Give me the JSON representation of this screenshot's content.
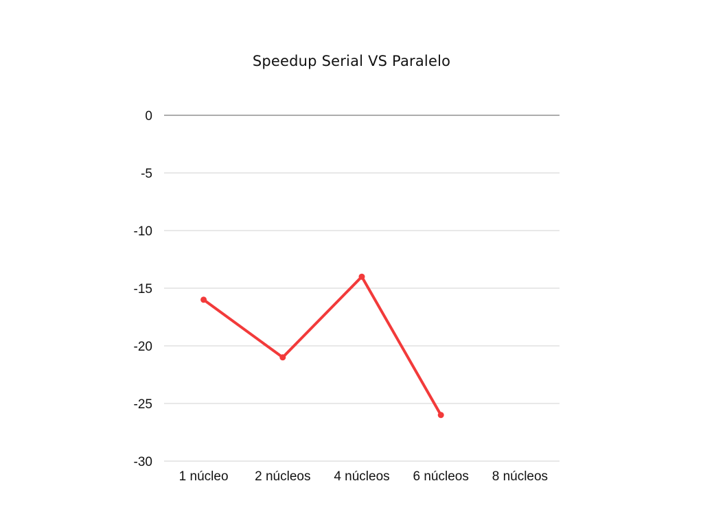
{
  "chart_data": {
    "type": "line",
    "title": "Speedup Serial VS Paralelo",
    "xlabel": "",
    "ylabel": "",
    "categories": [
      "1 núcleo",
      "2 núcleos",
      "4 núcleos",
      "6 núcleos",
      "8 núcleos"
    ],
    "series": [
      {
        "values": [
          -16,
          -21,
          -14,
          -26,
          null
        ],
        "color": "#f23a3a"
      }
    ],
    "ylim": [
      -30,
      0
    ],
    "yticks": [
      0,
      -5,
      -10,
      -15,
      -20,
      -25,
      -30
    ],
    "ytick_labels": [
      "0",
      "-5",
      "-10",
      "-15",
      "-20",
      "-25",
      "-30"
    ],
    "grid": true,
    "legend": "none"
  }
}
